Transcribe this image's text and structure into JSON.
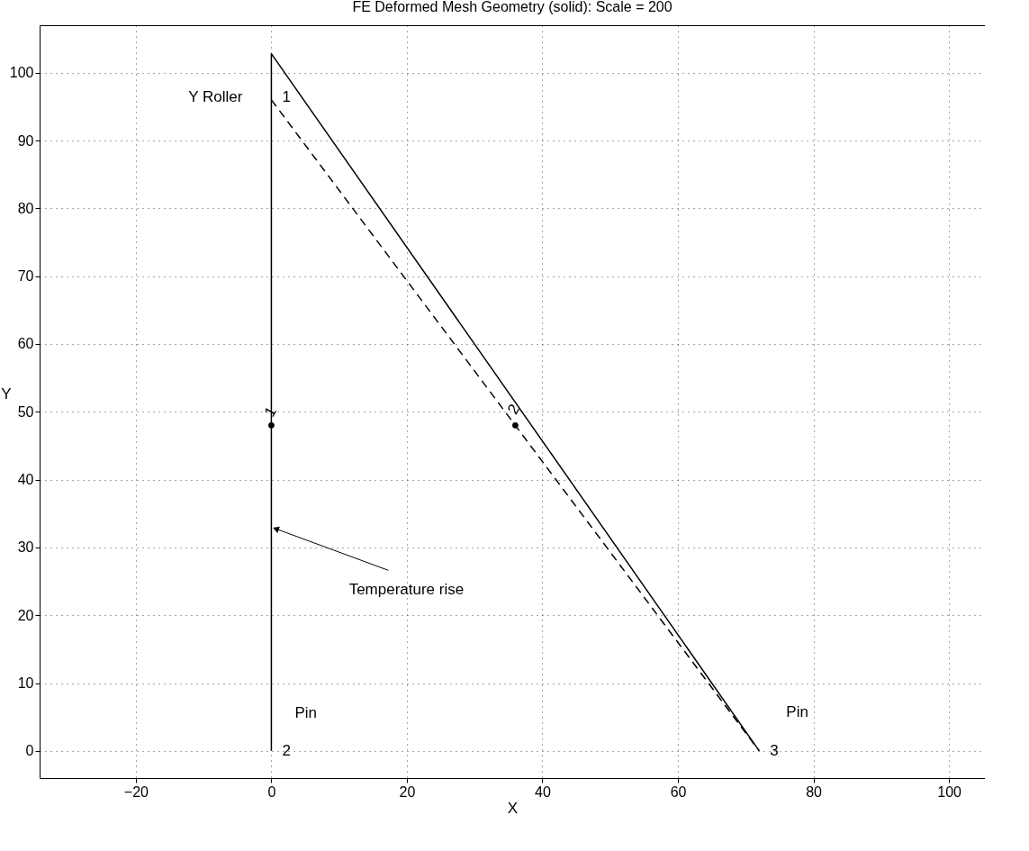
{
  "chart_data": {
    "type": "line",
    "title": "FE Deformed Mesh Geometry (solid): Scale = 200",
    "xlabel": "X",
    "ylabel": "Y",
    "xlim": [
      -34.2,
      105.3
    ],
    "ylim": [
      -4,
      107
    ],
    "xticks": [
      -20,
      0,
      20,
      40,
      60,
      80,
      100
    ],
    "yticks": [
      0,
      10,
      20,
      30,
      40,
      50,
      60,
      70,
      80,
      90,
      100
    ],
    "grid": true,
    "series": [
      {
        "color": "#000000",
        "line_style": "solid",
        "x": [
          0,
          0,
          72
        ],
        "values": [
          0,
          102.8,
          0
        ]
      },
      {
        "color": "#000000",
        "line_style": "dashed",
        "x": [
          0,
          72
        ],
        "values": [
          96,
          0
        ]
      },
      {
        "type": "scatter",
        "marker": "circle",
        "color": "#000000",
        "x": [
          0,
          36
        ],
        "values": [
          48,
          48
        ]
      }
    ],
    "annotations": [
      {
        "text": "1",
        "x": 0,
        "y": 96
      },
      {
        "text": "2",
        "x": 0,
        "y": 0
      },
      {
        "text": "3",
        "x": 72,
        "y": 0
      },
      {
        "text": "1",
        "x": 0,
        "y": 48
      },
      {
        "text": "2",
        "x": 36,
        "y": 48
      },
      {
        "text": "Y  Roller",
        "x": 0,
        "y": 96
      },
      {
        "text": "Pin",
        "x": 0,
        "y": 0
      },
      {
        "text": "Pin",
        "x": 72,
        "y": 0
      },
      {
        "text": "Temperature rise",
        "x": 0,
        "y": 33
      }
    ]
  }
}
